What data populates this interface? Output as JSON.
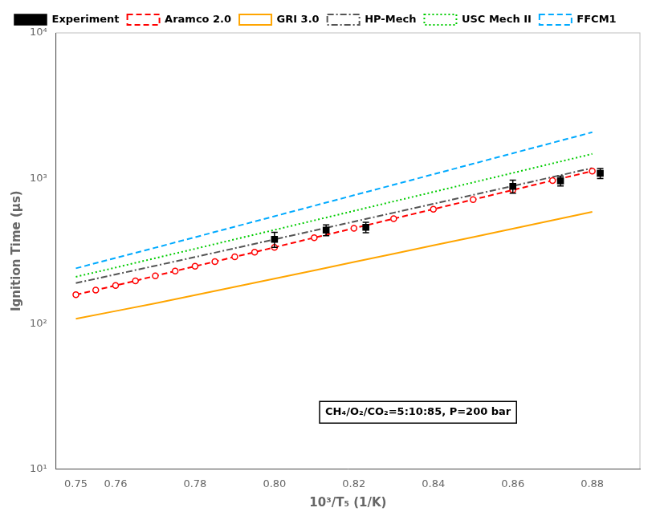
{
  "chart_data": {
    "type": "line",
    "xlabel": "10³/T₅ (1/K)",
    "ylabel": "Ignition Time (μs)",
    "annotation": "CH₄/O₂/CO₂=5:10:85, P=200 bar",
    "log": "y",
    "grid": false,
    "legend": "upper left",
    "xlim": [
      0.745,
      0.892
    ],
    "xticks": [
      0.75,
      0.76,
      0.78,
      {
        "value": 0.8,
        "label": "0.80"
      },
      0.82,
      0.84,
      0.86,
      0.88
    ],
    "ylim": [
      10,
      10000
    ],
    "yticks": [
      {
        "value": 10,
        "label": "10¹"
      },
      {
        "value": 100,
        "label": "10²"
      },
      {
        "value": 1000,
        "label": "10³"
      },
      {
        "value": 10000,
        "label": "10⁴"
      }
    ],
    "series": [
      {
        "name": "Aramco 2.0",
        "color": "#ff0000",
        "line_style": "dashed",
        "marker": "circle",
        "x": [
          0.75,
          0.755,
          0.76,
          0.765,
          0.77,
          0.775,
          0.78,
          0.785,
          0.79,
          0.795,
          0.8,
          0.81,
          0.82,
          0.83,
          0.84,
          0.85,
          0.86,
          0.87,
          0.88
        ],
        "values": [
          158,
          170,
          183,
          197,
          213,
          230,
          248,
          267,
          288,
          310,
          335,
          390,
          453,
          527,
          613,
          713,
          830,
          965,
          1120
        ]
      },
      {
        "name": "GRI 3.0",
        "color": "#ffa500",
        "line_style": "solid",
        "marker": "none",
        "x": [
          0.75,
          0.76,
          0.77,
          0.78,
          0.79,
          0.8,
          0.81,
          0.82,
          0.83,
          0.84,
          0.85,
          0.86,
          0.87,
          0.88
        ],
        "values": [
          108,
          122,
          138,
          157,
          179,
          204,
          232,
          265,
          302,
          345,
          394,
          450,
          514,
          588
        ]
      },
      {
        "name": "HP-Mech",
        "color": "#555555",
        "line_style": "dashdot",
        "marker": "none",
        "x": [
          0.75,
          0.76,
          0.77,
          0.78,
          0.79,
          0.8,
          0.81,
          0.82,
          0.83,
          0.84,
          0.85,
          0.86,
          0.87,
          0.88
        ],
        "values": [
          190,
          218,
          250,
          287,
          330,
          380,
          437,
          503,
          579,
          667,
          768,
          885,
          1020,
          1175
        ]
      },
      {
        "name": "USC Mech II",
        "color": "#00cc00",
        "line_style": "dotted",
        "marker": "none",
        "x": [
          0.75,
          0.76,
          0.77,
          0.78,
          0.79,
          0.8,
          0.81,
          0.82,
          0.83,
          0.84,
          0.85,
          0.86,
          0.87,
          0.88
        ],
        "values": [
          210,
          243,
          282,
          327,
          380,
          441,
          513,
          596,
          693,
          805,
          936,
          1088,
          1265,
          1470
        ]
      },
      {
        "name": "FFCM1",
        "color": "#00aaff",
        "line_style": "dashed",
        "marker": "none",
        "x": [
          0.75,
          0.76,
          0.77,
          0.78,
          0.79,
          0.8,
          0.81,
          0.82,
          0.83,
          0.84,
          0.85,
          0.86,
          0.87,
          0.88
        ],
        "values": [
          240,
          283,
          333,
          393,
          464,
          548,
          647,
          764,
          902,
          1065,
          1258,
          1486,
          1755,
          2073
        ]
      },
      {
        "name": "Experiment",
        "type": "scatter",
        "color": "#000000",
        "line_style": "none",
        "marker": "square",
        "x": [
          0.8,
          0.813,
          0.823,
          0.86,
          0.872,
          0.882
        ],
        "values": [
          380,
          440,
          460,
          880,
          960,
          1080
        ],
        "errors": [
          45,
          38,
          38,
          90,
          75,
          85
        ]
      }
    ]
  }
}
